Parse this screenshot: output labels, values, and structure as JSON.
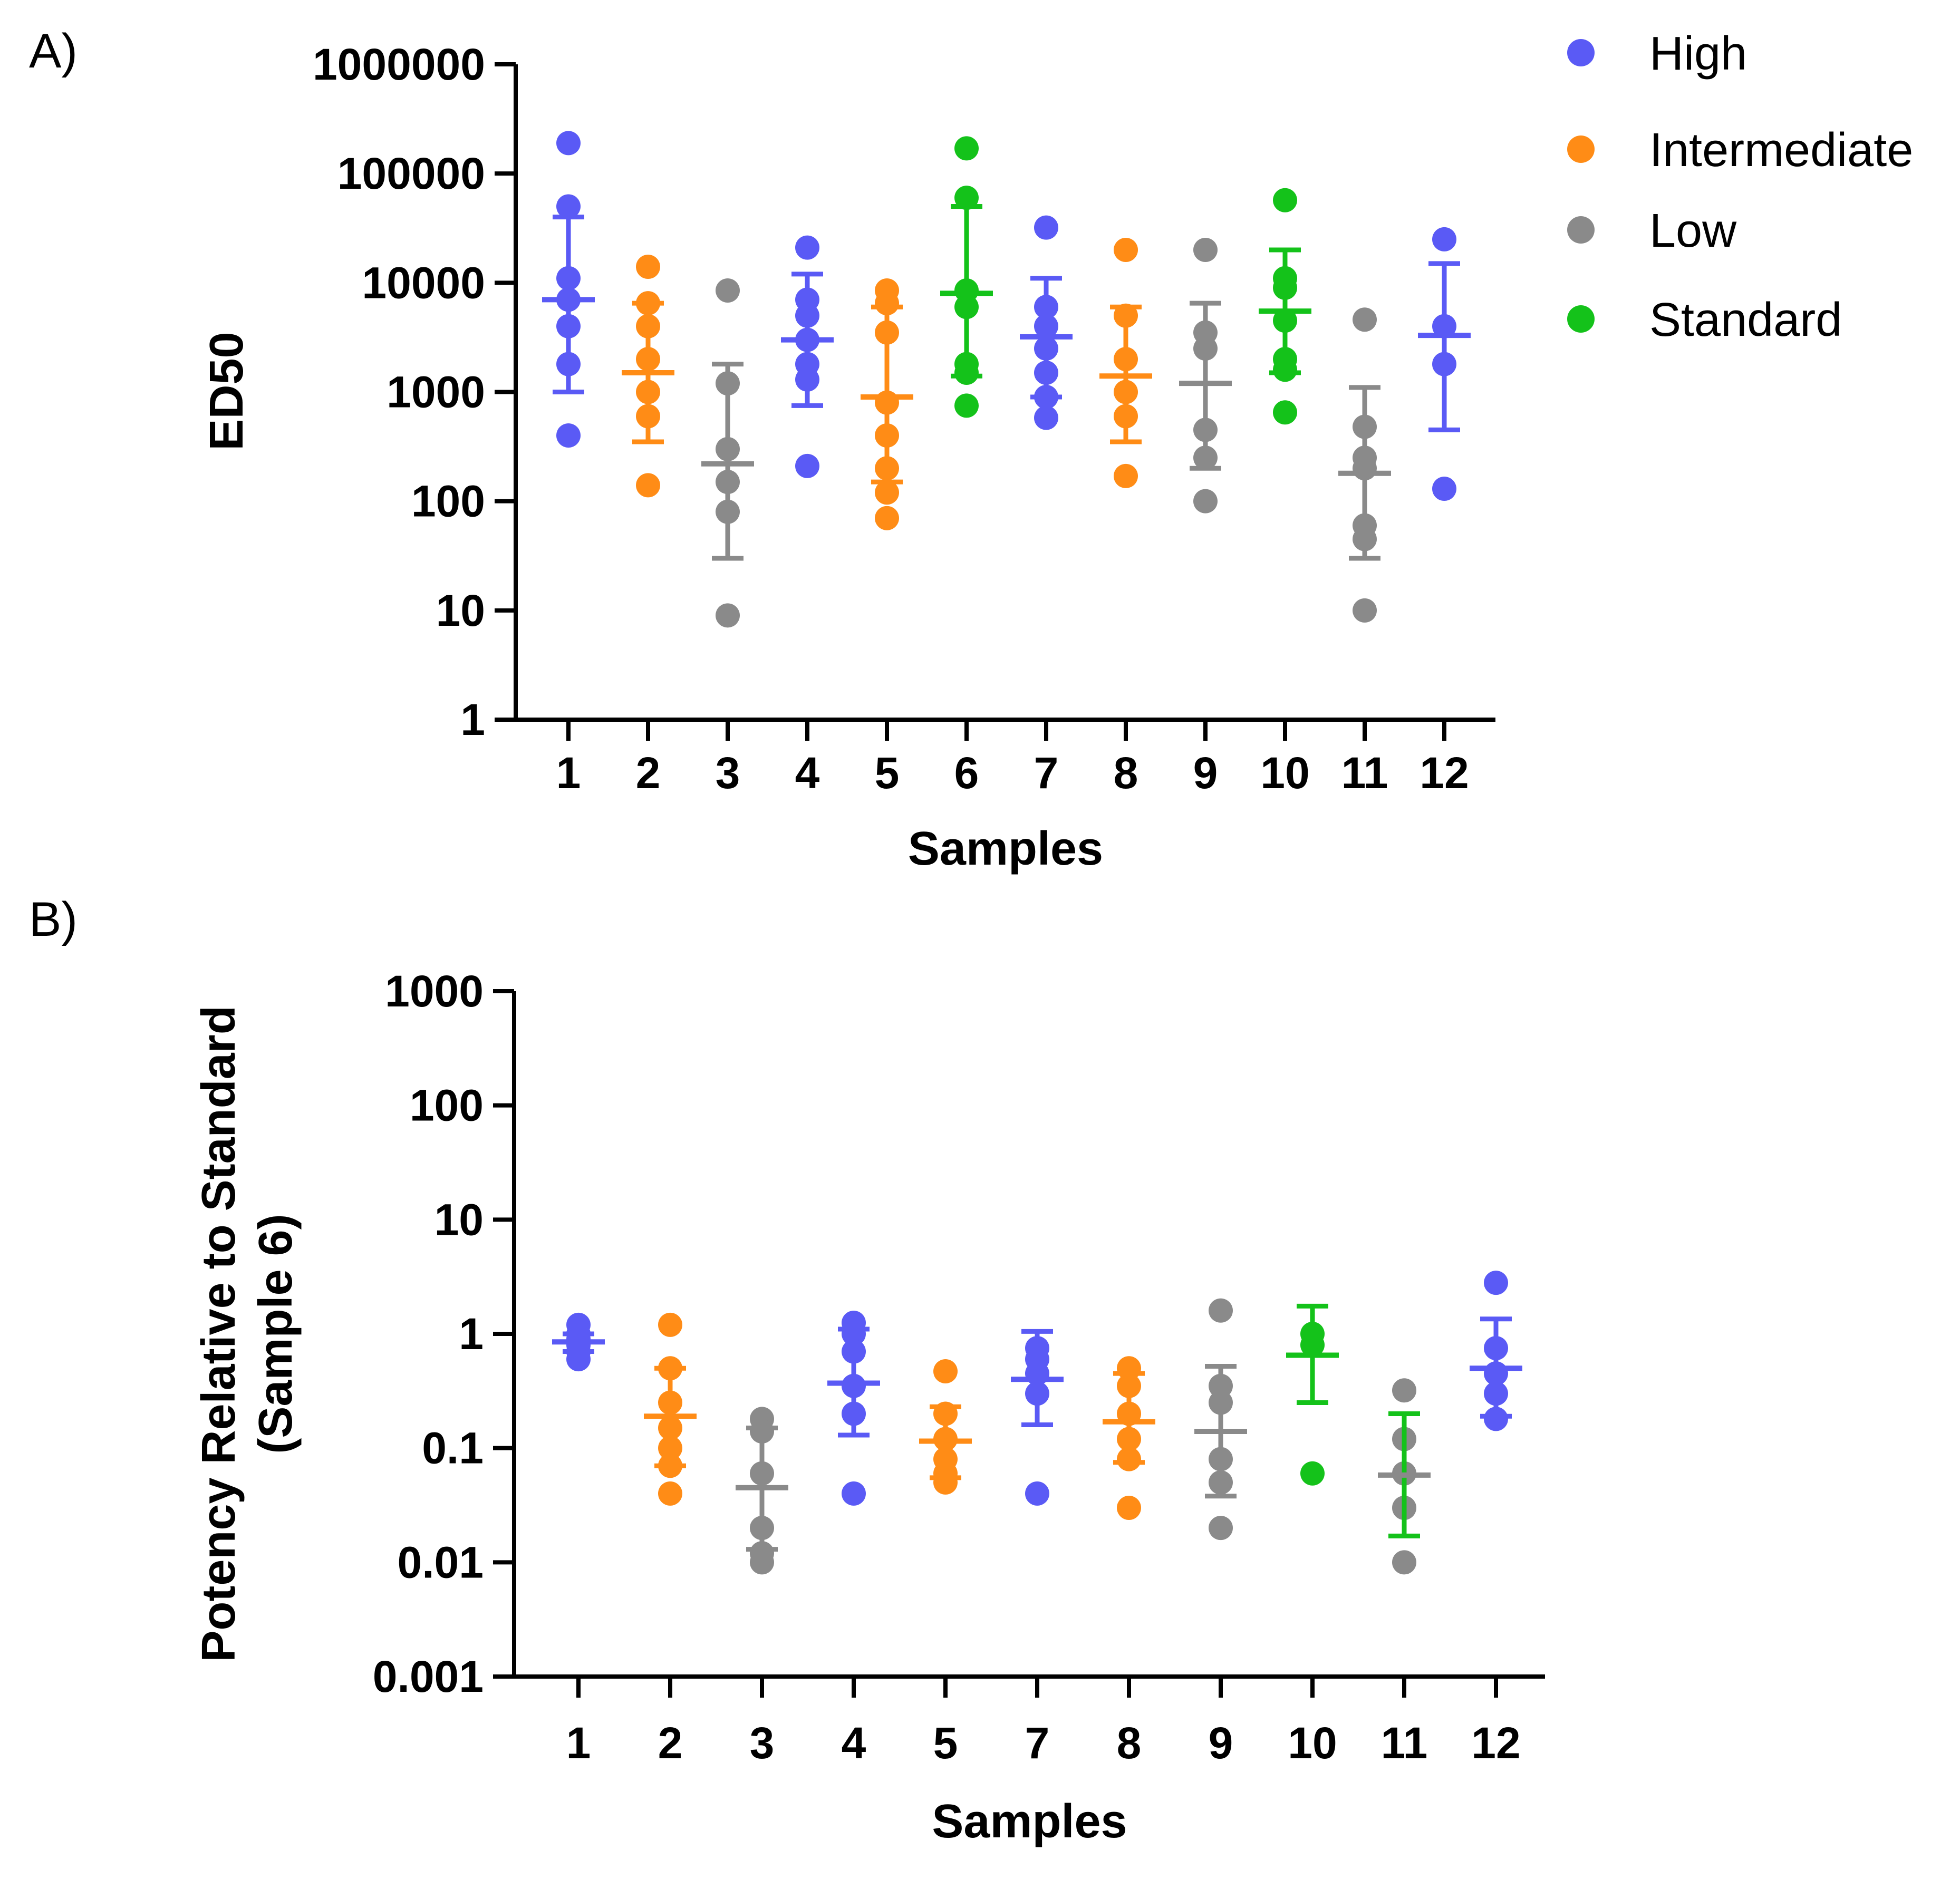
{
  "legend": [
    {
      "key": "high",
      "label": "High",
      "color": "#5a5af5"
    },
    {
      "key": "intermediate",
      "label": "Intermediate",
      "color": "#ff8c16"
    },
    {
      "key": "low",
      "label": "Low",
      "color": "#8a8a8a"
    },
    {
      "key": "standard",
      "label": "Standard",
      "color": "#14c21a"
    }
  ],
  "chart_data": [
    {
      "panel_label": "A)",
      "type": "scatter",
      "scale": "log",
      "xlabel": "Samples",
      "ylabel": "ED50",
      "ylim": [
        1,
        1000000
      ],
      "yticks": [
        {
          "value": 1,
          "label": "1"
        },
        {
          "value": 10,
          "label": "10"
        },
        {
          "value": 100,
          "label": "100"
        },
        {
          "value": 1000,
          "label": "1000"
        },
        {
          "value": 10000,
          "label": "10000"
        },
        {
          "value": 100000,
          "label": "100000"
        },
        {
          "value": 1000000,
          "label": "1000000"
        }
      ],
      "samples": [
        {
          "label": "1",
          "group": "high",
          "mean": 7000,
          "err_low": 1000,
          "err_high": 40000,
          "points": [
            190000,
            50000,
            11000,
            7000,
            4000,
            1800,
            400
          ]
        },
        {
          "label": "2",
          "group": "intermediate",
          "mean": 1500,
          "err_low": 350,
          "err_high": 6500,
          "points": [
            14000,
            6500,
            4000,
            2000,
            1000,
            600,
            140
          ]
        },
        {
          "label": "3",
          "group": "low",
          "mean": 220,
          "err_low": 30,
          "err_high": 1800,
          "points": [
            8500,
            1200,
            300,
            150,
            80,
            9
          ]
        },
        {
          "label": "4",
          "group": "high",
          "mean": 3000,
          "err_low": 750,
          "err_high": 12000,
          "points": [
            21000,
            7000,
            5000,
            3000,
            1800,
            1300,
            210
          ]
        },
        {
          "label": "5",
          "group": "intermediate",
          "mean": 900,
          "err_low": 150,
          "err_high": 6000,
          "points": [
            8500,
            6500,
            3500,
            800,
            400,
            200,
            120,
            70
          ]
        },
        {
          "label": "6",
          "group": "standard",
          "mean": 8000,
          "err_low": 1400,
          "err_high": 50000,
          "points": [
            170000,
            60000,
            8500,
            6000,
            1800,
            1500,
            750
          ]
        },
        {
          "label": "7",
          "group": "high",
          "mean": 3200,
          "err_low": 900,
          "err_high": 11000,
          "points": [
            32000,
            6000,
            4000,
            2500,
            1500,
            900,
            580
          ]
        },
        {
          "label": "8",
          "group": "intermediate",
          "mean": 1400,
          "err_low": 350,
          "err_high": 6000,
          "points": [
            20000,
            5000,
            2000,
            1000,
            600,
            170
          ]
        },
        {
          "label": "9",
          "group": "low",
          "mean": 1200,
          "err_low": 200,
          "err_high": 6500,
          "points": [
            20000,
            3500,
            2500,
            450,
            250,
            100
          ]
        },
        {
          "label": "10",
          "group": "standard",
          "mean": 5500,
          "err_low": 1500,
          "err_high": 20000,
          "points": [
            57000,
            11000,
            9000,
            4500,
            2000,
            1600,
            650
          ]
        },
        {
          "label": "11",
          "group": "low",
          "mean": 180,
          "err_low": 30,
          "err_high": 1100,
          "points": [
            4600,
            480,
            250,
            200,
            60,
            45,
            10
          ]
        },
        {
          "label": "12",
          "group": "high",
          "mean": 3300,
          "err_low": 450,
          "err_high": 15000,
          "points": [
            25000,
            4000,
            1800,
            130
          ]
        }
      ]
    },
    {
      "panel_label": "B)",
      "type": "scatter",
      "scale": "log",
      "xlabel": "Samples",
      "ylabel_lines": [
        "Potency Relative to Standard",
        "(Sample 6)"
      ],
      "ylim": [
        0.001,
        1000
      ],
      "yticks": [
        {
          "value": 0.001,
          "label": "0.001"
        },
        {
          "value": 0.01,
          "label": "0.01"
        },
        {
          "value": 0.1,
          "label": "0.1"
        },
        {
          "value": 1,
          "label": "1"
        },
        {
          "value": 10,
          "label": "10"
        },
        {
          "value": 100,
          "label": "100"
        },
        {
          "value": 1000,
          "label": "1000"
        }
      ],
      "samples": [
        {
          "label": "1",
          "group": "high",
          "mean": 0.85,
          "err_low": 0.7,
          "err_high": 1.0,
          "points": [
            1.2,
            1.0,
            0.9,
            0.8,
            0.7,
            0.6
          ]
        },
        {
          "label": "2",
          "group": "intermediate",
          "mean": 0.19,
          "err_low": 0.07,
          "err_high": 0.5,
          "points": [
            1.2,
            0.5,
            0.25,
            0.15,
            0.1,
            0.07,
            0.04
          ]
        },
        {
          "label": "3",
          "group": "low",
          "mean": 0.045,
          "err_low": 0.013,
          "err_high": 0.15,
          "points": [
            0.18,
            0.14,
            0.06,
            0.02,
            0.012,
            0.01
          ]
        },
        {
          "label": "4",
          "group": "high",
          "mean": 0.37,
          "err_low": 0.13,
          "err_high": 1.1,
          "points": [
            1.25,
            1.0,
            0.7,
            0.35,
            0.2,
            0.04
          ]
        },
        {
          "label": "5",
          "group": "intermediate",
          "mean": 0.115,
          "err_low": 0.055,
          "err_high": 0.23,
          "points": [
            0.47,
            0.2,
            0.12,
            0.08,
            0.06,
            0.05
          ]
        },
        {
          "label": "7",
          "group": "high",
          "mean": 0.4,
          "err_low": 0.16,
          "err_high": 1.05,
          "points": [
            0.75,
            0.6,
            0.45,
            0.3,
            0.04
          ]
        },
        {
          "label": "8",
          "group": "intermediate",
          "mean": 0.17,
          "err_low": 0.075,
          "err_high": 0.45,
          "points": [
            0.5,
            0.35,
            0.2,
            0.12,
            0.08,
            0.03
          ]
        },
        {
          "label": "9",
          "group": "low",
          "mean": 0.14,
          "err_low": 0.038,
          "err_high": 0.52,
          "points": [
            1.6,
            0.35,
            0.25,
            0.08,
            0.05,
            0.02
          ]
        },
        {
          "label": "10",
          "group": "standard",
          "mean": 0.65,
          "err_low": 0.25,
          "err_high": 1.75,
          "points": [
            1.0,
            0.8,
            0.06
          ]
        },
        {
          "label": "11",
          "group": "low",
          "mean": 0.058,
          "err_low": 0.017,
          "err_high": 0.2,
          "err_color_group": "standard",
          "points": [
            0.32,
            0.12,
            0.06,
            0.03,
            0.01
          ]
        },
        {
          "label": "12",
          "group": "high",
          "mean": 0.5,
          "err_low": 0.19,
          "err_high": 1.35,
          "points": [
            2.8,
            0.75,
            0.45,
            0.3,
            0.18
          ]
        }
      ]
    }
  ]
}
